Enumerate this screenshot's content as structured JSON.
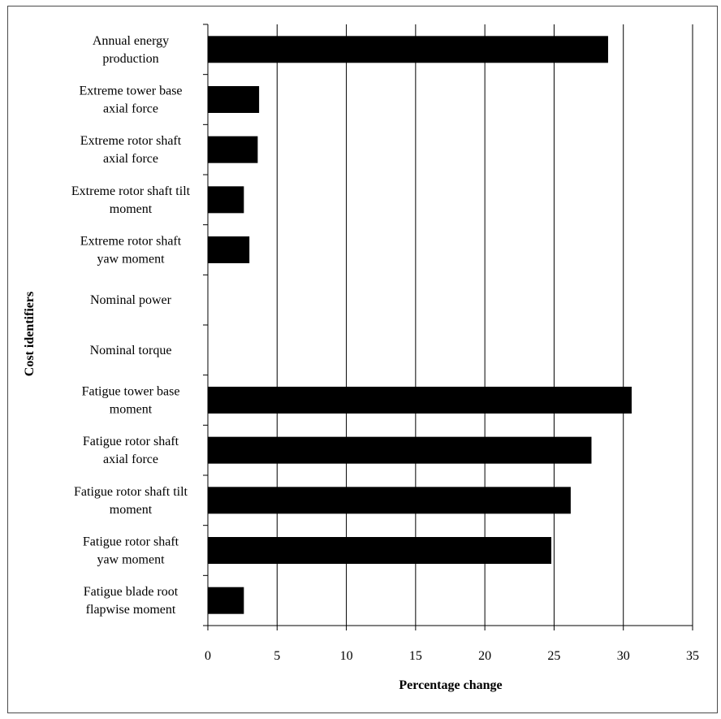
{
  "chart_data": {
    "type": "bar",
    "orientation": "horizontal",
    "title": "",
    "xlabel": "Percentage change",
    "ylabel": "Cost identifiers",
    "xlim": [
      0,
      35
    ],
    "xticks": [
      0,
      5,
      10,
      15,
      20,
      25,
      30,
      35
    ],
    "grid": "vertical",
    "legend": "none",
    "bar_color": "#000000",
    "categories": [
      [
        "Annual energy",
        "production"
      ],
      [
        "Extreme tower base",
        "axial force"
      ],
      [
        "Extreme rotor shaft",
        "axial force"
      ],
      [
        "Extreme rotor shaft tilt",
        "moment"
      ],
      [
        "Extreme rotor shaft",
        "yaw moment"
      ],
      [
        "Nominal power"
      ],
      [
        "Nominal torque"
      ],
      [
        "Fatigue tower base",
        "moment"
      ],
      [
        "Fatigue rotor shaft",
        "axial force"
      ],
      [
        "Fatigue rotor shaft tilt",
        "moment"
      ],
      [
        "Fatigue rotor shaft",
        "yaw moment"
      ],
      [
        "Fatigue blade root",
        "flapwise moment"
      ]
    ],
    "values": [
      28.9,
      3.7,
      3.6,
      2.6,
      3.0,
      0,
      0,
      30.6,
      27.7,
      26.2,
      24.8,
      2.6
    ]
  }
}
